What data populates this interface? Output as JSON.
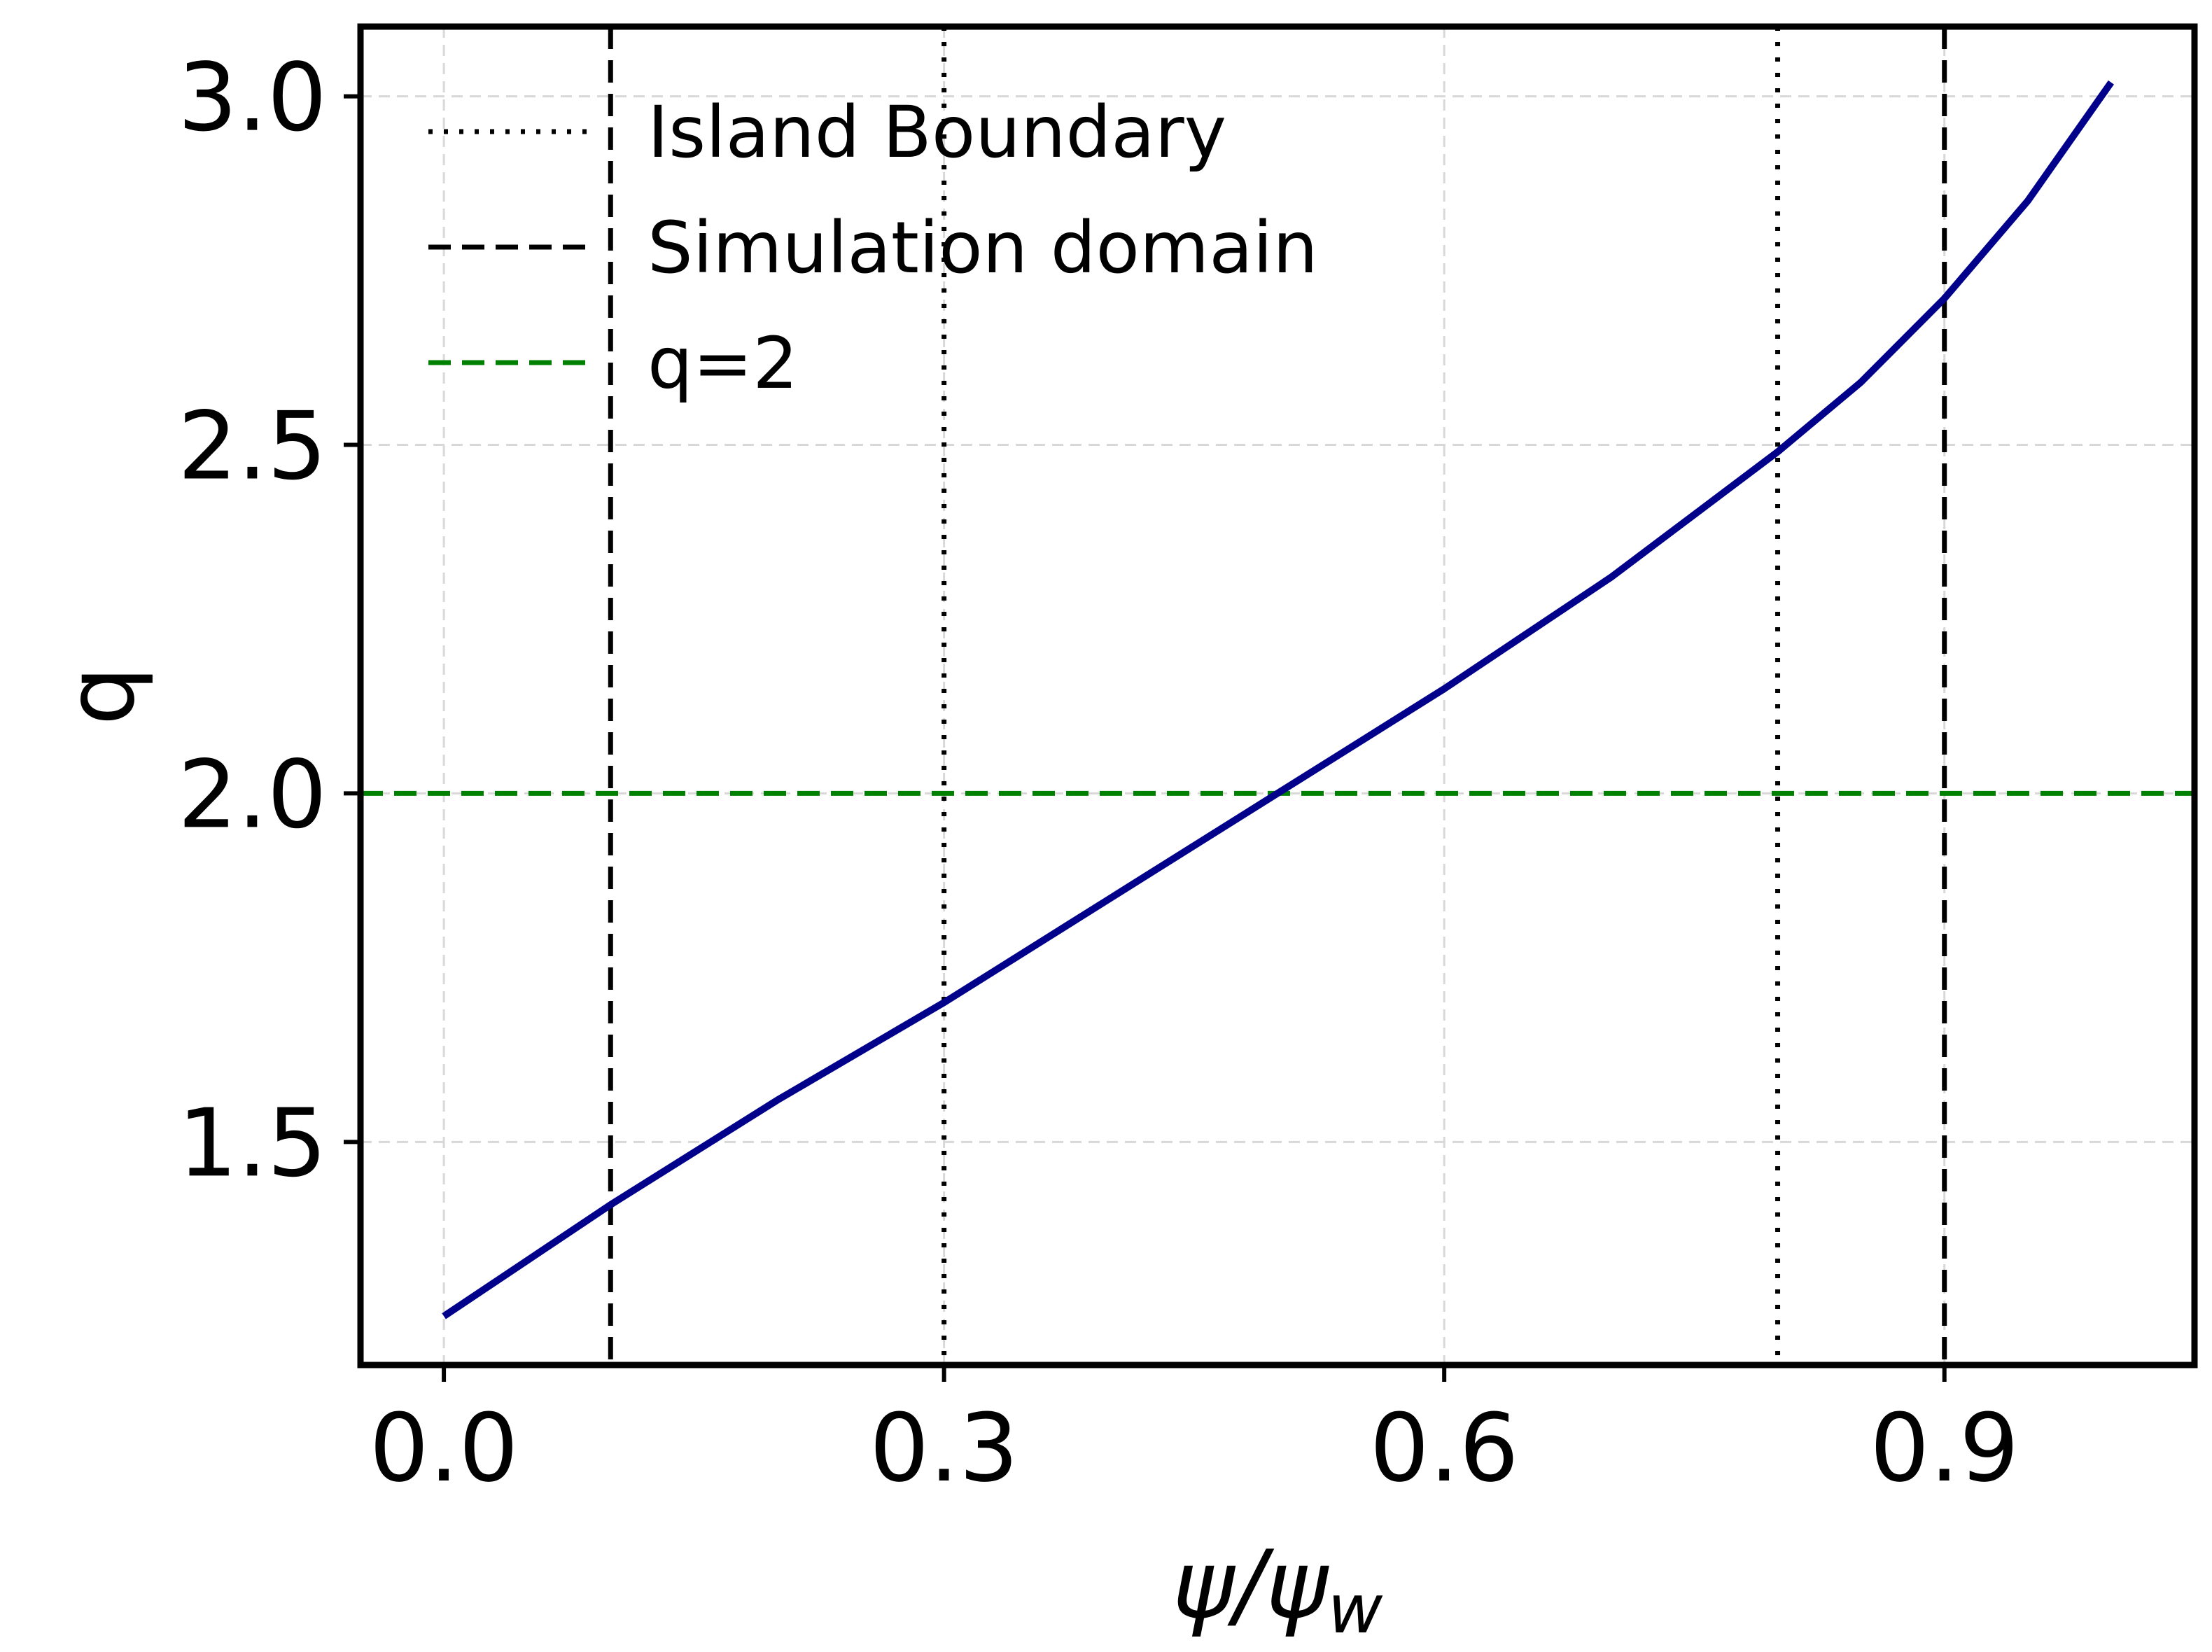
{
  "chart_data": {
    "type": "line",
    "title": "",
    "xlabel": {
      "main": "ψ/ψ",
      "sub": "w"
    },
    "ylabel": "q",
    "xlim": [
      -0.05,
      1.05
    ],
    "ylim": [
      1.18,
      3.1
    ],
    "xticks": [
      0.0,
      0.3,
      0.6,
      0.9
    ],
    "xtick_labels": [
      "0.0",
      "0.3",
      "0.6",
      "0.9"
    ],
    "yticks": [
      1.5,
      2.0,
      2.5,
      3.0
    ],
    "ytick_labels": [
      "1.5",
      "2.0",
      "2.5",
      "3.0"
    ],
    "grid": true,
    "legend_position": "top-left",
    "series": [
      {
        "name": "",
        "color": "#00008b",
        "x": [
          0.0,
          0.1,
          0.2,
          0.3,
          0.4,
          0.5,
          0.6,
          0.7,
          0.8,
          0.85,
          0.9,
          0.95,
          1.0
        ],
        "y": [
          1.25,
          1.41,
          1.56,
          1.7,
          1.85,
          2.0,
          2.15,
          2.31,
          2.49,
          2.59,
          2.71,
          2.85,
          3.02
        ]
      }
    ],
    "vlines": [
      {
        "x": 0.1,
        "style": "dashed",
        "color": "#000000",
        "legend": "Simulation domain"
      },
      {
        "x": 0.3,
        "style": "dotted",
        "color": "#000000",
        "legend": "Island Boundary"
      },
      {
        "x": 0.8,
        "style": "dotted",
        "color": "#000000",
        "legend": ""
      },
      {
        "x": 0.9,
        "style": "dashed",
        "color": "#000000",
        "legend": ""
      }
    ],
    "hlines": [
      {
        "y": 2.0,
        "style": "dashed",
        "color": "#008000",
        "legend": "q=2"
      }
    ],
    "legend": [
      {
        "label": "Island Boundary",
        "style": "dotted",
        "color": "#000000"
      },
      {
        "label": "Simulation domain",
        "style": "dashed",
        "color": "#000000"
      },
      {
        "label": "q=2",
        "style": "dashed",
        "color": "#008000"
      }
    ]
  }
}
